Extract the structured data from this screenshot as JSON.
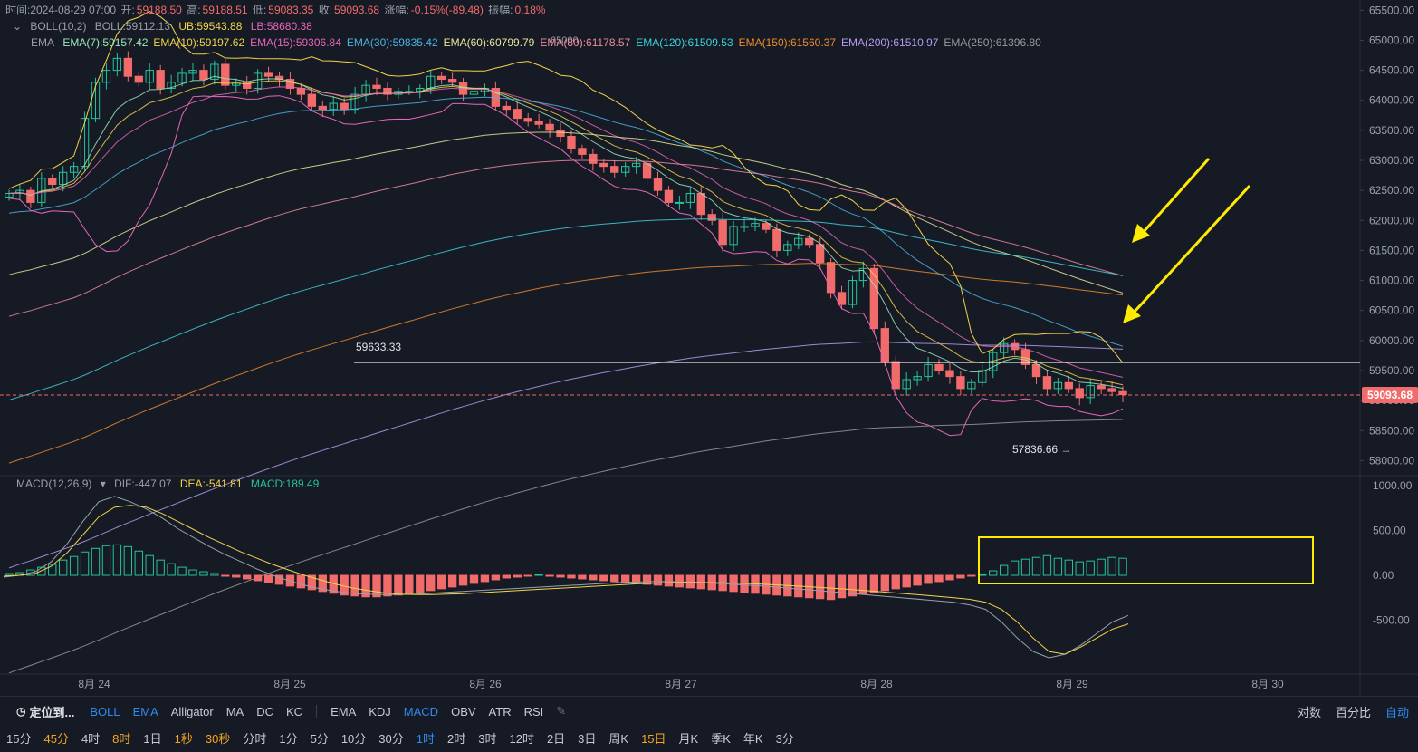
{
  "header": {
    "time_label": "时间:2024-08-29 07:00",
    "open_label": "开:",
    "open": "59188.50",
    "high_label": "高:",
    "high": "59188.51",
    "low_label": "低:",
    "low": "59083.35",
    "close_label": "收:",
    "close": "59093.68",
    "change_label": "涨幅:",
    "change": "-0.15%(-89.48)",
    "amp_label": "振幅:",
    "amp": "0.18%"
  },
  "boll": {
    "name": "BOLL(10,2)",
    "mid": "BOLL:59112.13",
    "ub": "UB:59543.88",
    "lb": "LB:58680.38"
  },
  "ema": {
    "name": "EMA",
    "items": [
      {
        "label": "EMA(7):59157.42",
        "color": "#9be7b8"
      },
      {
        "label": "EMA(10):59197.62",
        "color": "#f1d44a"
      },
      {
        "label": "EMA(15):59306.84",
        "color": "#e467b8"
      },
      {
        "label": "EMA(30):59835.42",
        "color": "#4cb3e3"
      },
      {
        "label": "EMA(60):60799.79",
        "color": "#e8e89a"
      },
      {
        "label": "EMA(80):61178.57",
        "color": "#f08ba0"
      },
      {
        "label": "EMA(120):61509.53",
        "color": "#3fd0dc"
      },
      {
        "label": "EMA(150):61560.37",
        "color": "#f08a2b"
      },
      {
        "label": "EMA(200):61510.97",
        "color": "#b59cf0"
      },
      {
        "label": "EMA(250):61396.80",
        "color": "#9a9a9a"
      }
    ]
  },
  "macd_info": {
    "name": "MACD(12,26,9)",
    "dif": "DIF:-447.07",
    "dea": "DEA:-541.81",
    "macd": "MACD:189.49"
  },
  "annotations": {
    "hline_label": "59633.33",
    "hline_value": 59633.33,
    "low_label": "57836.66",
    "low_arrow": "→",
    "high_label": "65000"
  },
  "current_price": {
    "label": "59093.68",
    "value": 59093.68
  },
  "colors": {
    "up": "#26c39b",
    "down": "#f26b6b",
    "bg": "#161a25",
    "highlight": "#ffeb00"
  },
  "chart_data": {
    "type": "candlestick",
    "price_axis": {
      "min": 57750,
      "max": 65550,
      "ticks": [
        "65500.00",
        "65000.00",
        "64500.00",
        "64000.00",
        "63500.00",
        "63000.00",
        "62500.00",
        "62000.00",
        "61500.00",
        "61000.00",
        "60500.00",
        "60000.00",
        "59500.00",
        "59000.00",
        "58500.00",
        "58000.00"
      ]
    },
    "macd_axis": {
      "min": -1000,
      "max": 1000,
      "ticks": [
        "1000.00",
        "500.00",
        "0.00",
        "-500.00"
      ]
    },
    "x_labels": [
      "8月 24",
      "8月 25",
      "8月 26",
      "8月 27",
      "8月 28",
      "8月 29",
      "8月 30"
    ],
    "close_series": [
      62450,
      62500,
      62300,
      62700,
      62600,
      62800,
      62900,
      63700,
      64300,
      64500,
      64700,
      64400,
      64300,
      64500,
      64200,
      64300,
      64450,
      64500,
      64350,
      64600,
      64250,
      64300,
      64200,
      64450,
      64400,
      64350,
      64200,
      64100,
      63900,
      63850,
      63950,
      63850,
      64100,
      64250,
      64200,
      64100,
      64150,
      64150,
      64200,
      64400,
      64350,
      64300,
      64100,
      64150,
      64200,
      63900,
      63850,
      63700,
      63650,
      63600,
      63500,
      63400,
      63200,
      63100,
      62950,
      62900,
      62800,
      62900,
      62950,
      62700,
      62500,
      62300,
      62300,
      62450,
      62100,
      62000,
      61600,
      61900,
      61900,
      61950,
      61850,
      61500,
      61600,
      61700,
      61600,
      61300,
      60800,
      60600,
      61000,
      61200,
      60200,
      59650,
      59200,
      59350,
      59400,
      59600,
      59500,
      59400,
      59200,
      59300,
      59500,
      59800,
      59950,
      59850,
      59600,
      59400,
      59200,
      59300,
      59200,
      59050,
      59250,
      59200,
      59150,
      59100
    ],
    "macd_hist": [
      20,
      30,
      60,
      90,
      120,
      170,
      210,
      260,
      300,
      330,
      340,
      320,
      270,
      220,
      170,
      130,
      90,
      60,
      40,
      20,
      -10,
      -20,
      -40,
      -60,
      -80,
      -100,
      -120,
      -140,
      -160,
      -180,
      -200,
      -220,
      -230,
      -240,
      -240,
      -230,
      -220,
      -210,
      -190,
      -170,
      -150,
      -130,
      -110,
      -90,
      -70,
      -50,
      -30,
      -20,
      -10,
      10,
      -10,
      -20,
      -30,
      -40,
      -50,
      -60,
      -70,
      -80,
      -90,
      -100,
      -110,
      -120,
      -130,
      -140,
      -150,
      -160,
      -170,
      -180,
      -190,
      -200,
      -210,
      -220,
      -230,
      -240,
      -250,
      -260,
      -270,
      -250,
      -230,
      -210,
      -190,
      -170,
      -150,
      -130,
      -110,
      -90,
      -70,
      -50,
      -30,
      -10,
      10,
      50,
      110,
      160,
      180,
      200,
      220,
      190,
      170,
      150,
      160,
      180,
      200,
      190
    ],
    "dif": [
      -20,
      0,
      40,
      150,
      350,
      600,
      820,
      880,
      820,
      740,
      640,
      520,
      420,
      320,
      230,
      150,
      70,
      0,
      -60,
      -110,
      -150,
      -180,
      -200,
      -210,
      -215,
      -215,
      -210,
      -200,
      -190,
      -180,
      -170,
      -160,
      -150,
      -140,
      -130,
      -120,
      -110,
      -100,
      -90,
      -80,
      -75,
      -70,
      -70,
      -75,
      -80,
      -90,
      -100,
      -110,
      -120,
      -135,
      -150,
      -165,
      -180,
      -195,
      -210,
      -225,
      -240,
      -255,
      -270,
      -285,
      -300,
      -330,
      -380,
      -520,
      -700,
      -850,
      -920,
      -880,
      -780,
      -650,
      -520,
      -447
    ],
    "dea": [
      -10,
      0,
      20,
      100,
      250,
      450,
      650,
      760,
      780,
      760,
      690,
      600,
      510,
      420,
      340,
      260,
      190,
      120,
      60,
      0,
      -50,
      -100,
      -140,
      -170,
      -195,
      -210,
      -215,
      -215,
      -210,
      -205,
      -195,
      -185,
      -175,
      -165,
      -155,
      -145,
      -135,
      -125,
      -115,
      -105,
      -95,
      -88,
      -82,
      -80,
      -80,
      -82,
      -86,
      -92,
      -100,
      -108,
      -118,
      -128,
      -140,
      -152,
      -165,
      -178,
      -192,
      -206,
      -220,
      -234,
      -250,
      -268,
      -300,
      -380,
      -520,
      -700,
      -850,
      -880,
      -800,
      -700,
      -600,
      -541.81
    ]
  },
  "toolbar": {
    "locate_label": "定位到...",
    "indicators_main": [
      {
        "label": "BOLL",
        "active": true
      },
      {
        "label": "EMA",
        "active": true
      },
      {
        "label": "Alligator",
        "active": false
      },
      {
        "label": "MA",
        "active": false
      },
      {
        "label": "DC",
        "active": false
      },
      {
        "label": "KC",
        "active": false
      }
    ],
    "indicators_sub": [
      {
        "label": "EMA",
        "active": false
      },
      {
        "label": "KDJ",
        "active": false
      },
      {
        "label": "MACD",
        "active": true
      },
      {
        "label": "OBV",
        "active": false
      },
      {
        "label": "ATR",
        "active": false
      },
      {
        "label": "RSI",
        "active": false
      }
    ],
    "right_items": [
      {
        "label": "对数",
        "active": false
      },
      {
        "label": "百分比",
        "active": false
      },
      {
        "label": "自动",
        "active": true
      }
    ],
    "intervals": [
      {
        "label": "15分",
        "style": "normal"
      },
      {
        "label": "45分",
        "style": "orange"
      },
      {
        "label": "4时",
        "style": "normal"
      },
      {
        "label": "8时",
        "style": "orange"
      },
      {
        "label": "1日",
        "style": "normal"
      },
      {
        "label": "1秒",
        "style": "orange"
      },
      {
        "label": "30秒",
        "style": "orange"
      },
      {
        "label": "分时",
        "style": "normal"
      },
      {
        "label": "1分",
        "style": "normal"
      },
      {
        "label": "5分",
        "style": "normal"
      },
      {
        "label": "10分",
        "style": "normal"
      },
      {
        "label": "30分",
        "style": "normal"
      },
      {
        "label": "1时",
        "style": "active"
      },
      {
        "label": "2时",
        "style": "normal"
      },
      {
        "label": "3时",
        "style": "normal"
      },
      {
        "label": "12时",
        "style": "normal"
      },
      {
        "label": "2日",
        "style": "normal"
      },
      {
        "label": "3日",
        "style": "normal"
      },
      {
        "label": "周K",
        "style": "normal"
      },
      {
        "label": "15日",
        "style": "orange"
      },
      {
        "label": "月K",
        "style": "normal"
      },
      {
        "label": "季K",
        "style": "normal"
      },
      {
        "label": "年K",
        "style": "normal"
      },
      {
        "label": "3分",
        "style": "normal"
      }
    ]
  }
}
